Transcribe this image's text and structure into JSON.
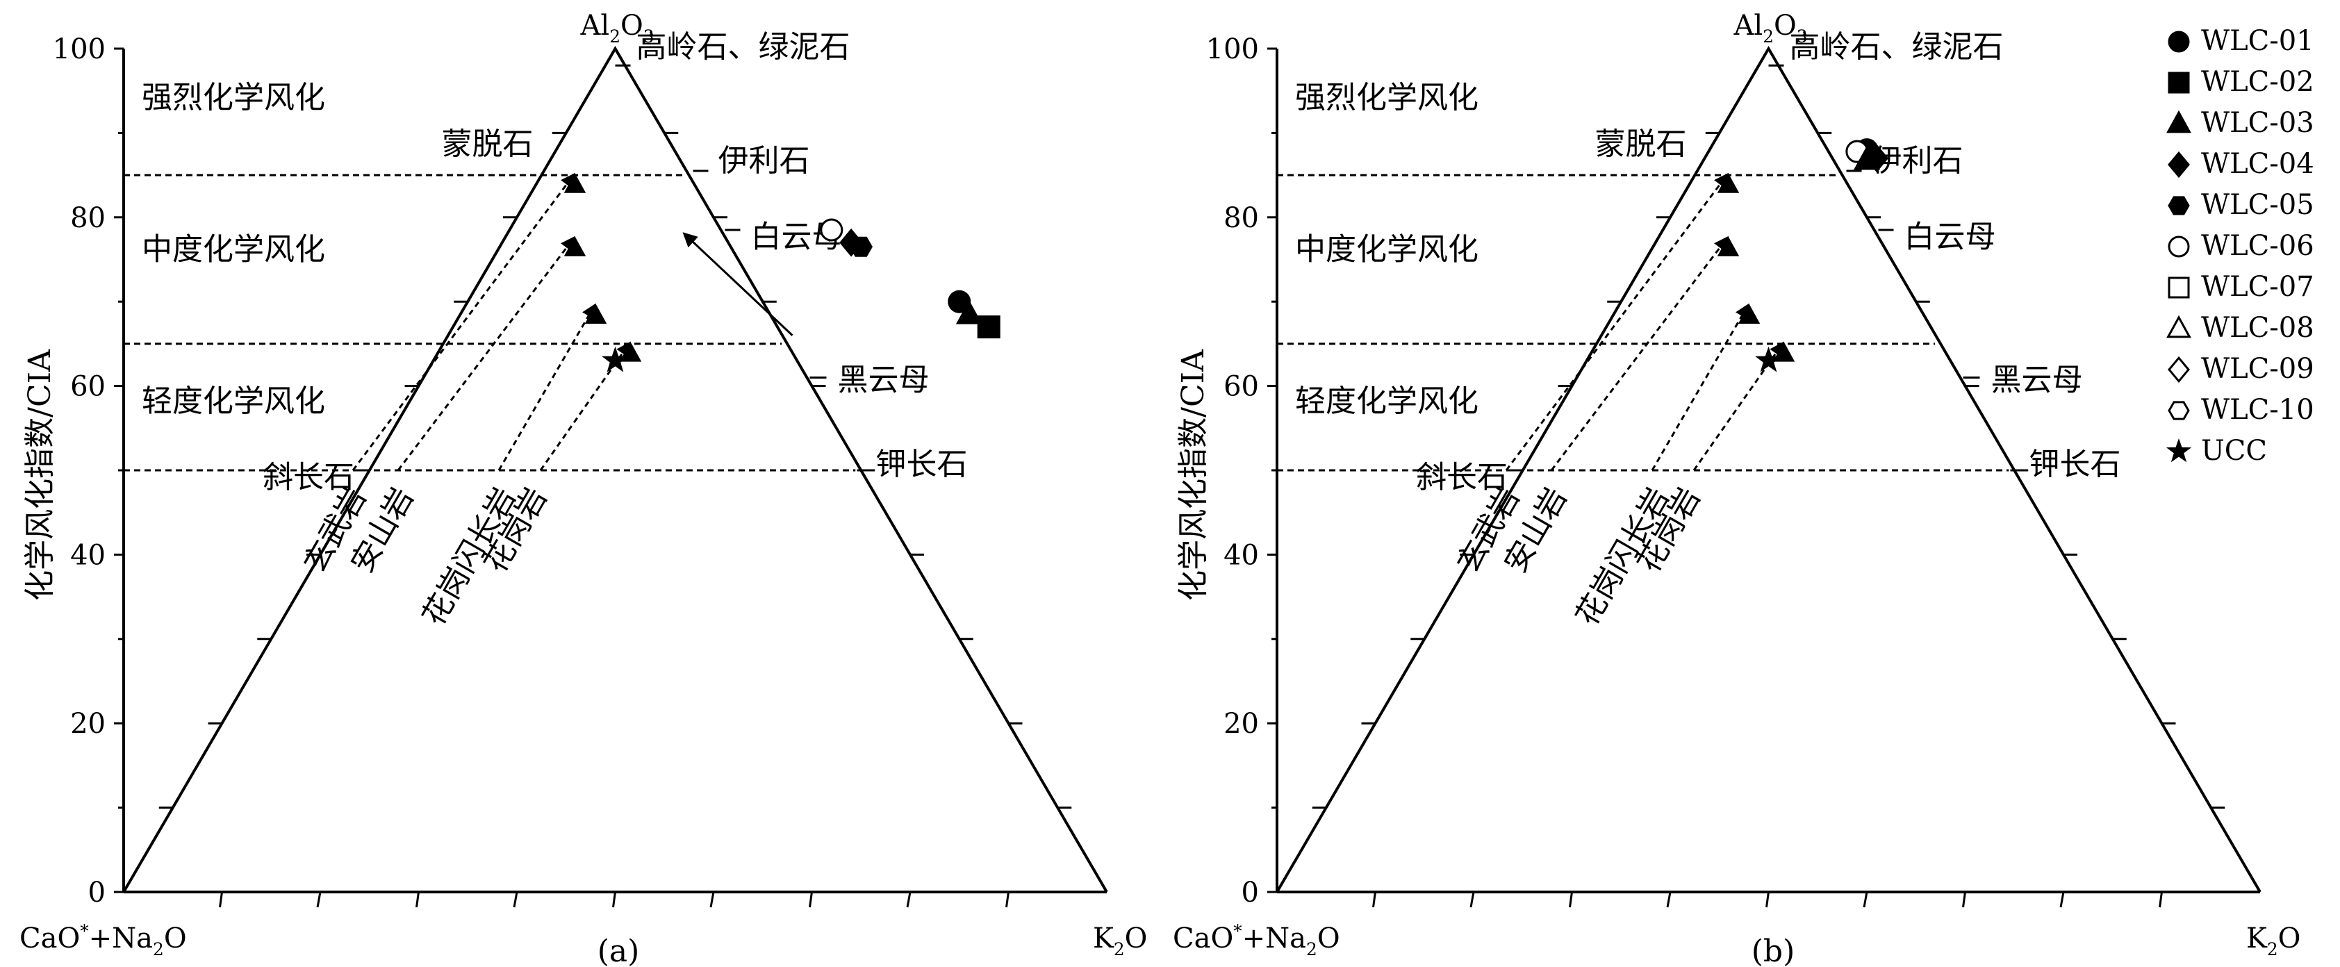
{
  "chart_data": [
    {
      "type": "scatter",
      "subtitle": "(a)",
      "ylabel": "化学风化指数/CIA",
      "ylim": [
        0,
        100
      ],
      "yticks": [
        "0",
        "20",
        "40",
        "60",
        "80",
        "100"
      ],
      "apex_label": "Al2O3",
      "left_corner_label": "CaO*+Na2O",
      "right_corner_label": "K2O",
      "zone_lines": [
        50,
        65,
        85
      ],
      "zones": [
        "强烈化学风化",
        "中度化学风化",
        "轻度化学风化"
      ],
      "mineral_labels": [
        "高岭石、绿泥石",
        "伊利石",
        "白云母",
        "黑云母",
        "钾长石",
        "蒙脱石",
        "斜长石"
      ],
      "rock_labels": [
        "玄武岩",
        "安山岩",
        "花岗闪长岩",
        "花岗岩"
      ],
      "samples": [
        {
          "sample": "WLC-06",
          "x": 0.72,
          "y": 78.5
        },
        {
          "sample": "WLC-04",
          "x": 0.74,
          "y": 77.0
        },
        {
          "sample": "WLC-05",
          "x": 0.75,
          "y": 76.5
        },
        {
          "sample": "WLC-01",
          "x": 0.85,
          "y": 70.0
        },
        {
          "sample": "WLC-03",
          "x": 0.86,
          "y": 68.5
        },
        {
          "sample": "WLC-02",
          "x": 0.88,
          "y": 67.0
        },
        {
          "sample": "UCC",
          "x": 0.5,
          "y": 63.0
        }
      ]
    },
    {
      "type": "scatter",
      "subtitle": "(b)",
      "ylabel": "化学风化指数/CIA",
      "ylim": [
        0,
        100
      ],
      "yticks": [
        "0",
        "20",
        "40",
        "60",
        "80",
        "100"
      ],
      "apex_label": "Al2O3",
      "left_corner_label": "CaO*+Na2O",
      "right_corner_label": "K2O",
      "zone_lines": [
        50,
        65,
        85
      ],
      "zones": [
        "强烈化学风化",
        "中度化学风化",
        "轻度化学风化"
      ],
      "mineral_labels": [
        "高岭石、绿泥石",
        "伊利石",
        "白云母",
        "黑云母",
        "钾长石",
        "蒙脱石",
        "斜长石"
      ],
      "rock_labels": [
        "玄武岩",
        "安山岩",
        "花岗闪长岩",
        "花岗岩"
      ],
      "samples": [
        {
          "sample": "WLC-01",
          "x": 0.6,
          "y": 88.0
        },
        {
          "sample": "WLC-05",
          "x": 0.6,
          "y": 87.5
        },
        {
          "sample": "WLC-04",
          "x": 0.61,
          "y": 87.0
        },
        {
          "sample": "WLC-06",
          "x": 0.59,
          "y": 87.8
        },
        {
          "sample": "WLC-03",
          "x": 0.6,
          "y": 86.8
        },
        {
          "sample": "UCC",
          "x": 0.5,
          "y": 63.0
        }
      ]
    }
  ],
  "legend": [
    {
      "label": "WLC-01",
      "symbol": "circle",
      "filled": true
    },
    {
      "label": "WLC-02",
      "symbol": "square",
      "filled": true
    },
    {
      "label": "WLC-03",
      "symbol": "triangle",
      "filled": true
    },
    {
      "label": "WLC-04",
      "symbol": "diamond",
      "filled": true
    },
    {
      "label": "WLC-05",
      "symbol": "hexagon",
      "filled": true
    },
    {
      "label": "WLC-06",
      "symbol": "circle",
      "filled": false
    },
    {
      "label": "WLC-07",
      "symbol": "square",
      "filled": false
    },
    {
      "label": "WLC-08",
      "symbol": "triangle",
      "filled": false
    },
    {
      "label": "WLC-09",
      "symbol": "diamond",
      "filled": false
    },
    {
      "label": "WLC-10",
      "symbol": "hexagon",
      "filled": false
    },
    {
      "label": "UCC",
      "symbol": "star",
      "filled": true
    }
  ],
  "legend_position": "top-right"
}
